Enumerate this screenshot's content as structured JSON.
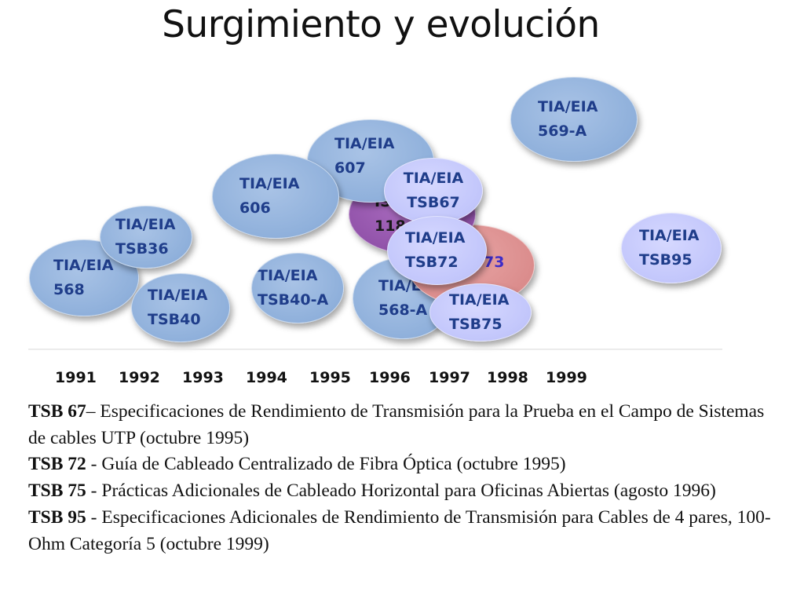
{
  "title": "Surgimiento y evolución",
  "bubbles": [
    {
      "id": "568a",
      "line1": "TIA/EIA",
      "line2": "568-A"
    },
    {
      "id": "573",
      "line1": "",
      "line2": "73"
    },
    {
      "id": "iso",
      "line1": "IS",
      "line2": "118"
    },
    {
      "id": "607",
      "line1": "TIA/EIA",
      "line2": "607"
    },
    {
      "id": "606",
      "line1": "TIA/EIA",
      "line2": "606"
    },
    {
      "id": "tsb67",
      "line1": "TIA/EIA",
      "line2": "TSB67"
    },
    {
      "id": "tsb72",
      "line1": "TIA/EIA",
      "line2": "TSB72"
    },
    {
      "id": "tsb75",
      "line1": "TIA/EIA",
      "line2": "TSB75"
    },
    {
      "id": "569a",
      "line1": "TIA/EIA",
      "line2": "569-A"
    },
    {
      "id": "tsb95",
      "line1": "TIA/EIA",
      "line2": "TSB95"
    },
    {
      "id": "568",
      "line1": "TIA/EIA",
      "line2": "568"
    },
    {
      "id": "tsb36",
      "line1": "TIA/EIA",
      "line2": "TSB36"
    },
    {
      "id": "tsb40",
      "line1": "TIA/EIA",
      "line2": "TSB40"
    },
    {
      "id": "tsb40a",
      "line1": "TIA/EIA",
      "line2": "TSB40-A"
    }
  ],
  "years": [
    "1991",
    "1992",
    "1993",
    "1994",
    "1995",
    "1996",
    "1997",
    "1998",
    "1999"
  ],
  "notes": [
    {
      "bold": "TSB 67",
      "text": "– Especificaciones de Rendimiento de Transmisión para la Prueba en el Campo de Sistemas de cables UTP (octubre 1995)"
    },
    {
      "bold": "TSB 72",
      "text": " - Guía de Cableado Centralizado de Fibra Óptica (octubre 1995)"
    },
    {
      "bold": "TSB 75",
      "text": " - Prácticas Adicionales de Cableado Horizontal para Oficinas Abiertas (agosto 1996)"
    },
    {
      "bold": "TSB 95",
      "text": " - Especificaciones Adicionales de Rendimiento de Transmisión para Cables de 4 pares, 100-Ohm Categoría 5 (octubre 1999)"
    }
  ],
  "colors": {
    "steel": "#8fb0db",
    "lavender": "#c2c6fb",
    "violet": "#8d4ea6",
    "rose": "#d98989",
    "label": "#1f3d8a"
  }
}
